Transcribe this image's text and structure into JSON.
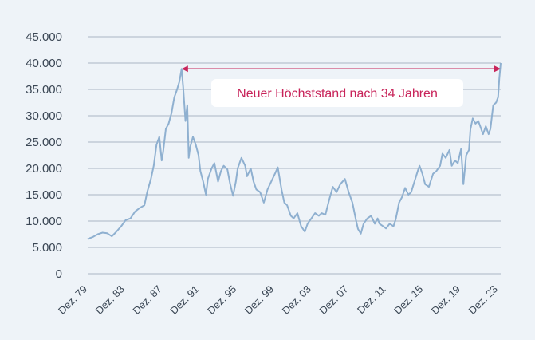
{
  "chart_data": {
    "type": "line",
    "title": "",
    "xlabel": "",
    "ylabel": "",
    "ylim": [
      0,
      45000
    ],
    "grid": true,
    "y_ticks": [
      {
        "value": 0,
        "label": "0"
      },
      {
        "value": 5000,
        "label": "5.000"
      },
      {
        "value": 10000,
        "label": "10.000"
      },
      {
        "value": 15000,
        "label": "15.000"
      },
      {
        "value": 20000,
        "label": "20.000"
      },
      {
        "value": 25000,
        "label": "25.000"
      },
      {
        "value": 30000,
        "label": "30.000"
      },
      {
        "value": 35000,
        "label": "35.000"
      },
      {
        "value": 40000,
        "label": "40.000"
      },
      {
        "value": 45000,
        "label": "45.000"
      }
    ],
    "x_ticks": [
      {
        "value": 1979.92,
        "label": "Dez. 79"
      },
      {
        "value": 1983.92,
        "label": "Dez. 83"
      },
      {
        "value": 1987.92,
        "label": "Dez. 87"
      },
      {
        "value": 1991.92,
        "label": "Dez. 91"
      },
      {
        "value": 1995.92,
        "label": "Dez. 95"
      },
      {
        "value": 1999.92,
        "label": "Dez. 99"
      },
      {
        "value": 2003.92,
        "label": "Dez. 03"
      },
      {
        "value": 2007.92,
        "label": "Dez. 07"
      },
      {
        "value": 2011.92,
        "label": "Dez. 11"
      },
      {
        "value": 2015.92,
        "label": "Dez. 15"
      },
      {
        "value": 2019.92,
        "label": "Dez. 19"
      },
      {
        "value": 2023.92,
        "label": "Dez. 23"
      }
    ],
    "xlim": [
      1979.92,
      2024.2
    ],
    "series": [
      {
        "name": "",
        "color": "#8fb0d0",
        "points": [
          [
            1979.92,
            6600
          ],
          [
            1980.5,
            7000
          ],
          [
            1981.0,
            7500
          ],
          [
            1981.5,
            7800
          ],
          [
            1982.0,
            7700
          ],
          [
            1982.5,
            7100
          ],
          [
            1982.9,
            7800
          ],
          [
            1983.5,
            9000
          ],
          [
            1984.0,
            10200
          ],
          [
            1984.5,
            10500
          ],
          [
            1985.0,
            11800
          ],
          [
            1985.5,
            12500
          ],
          [
            1986.0,
            13000
          ],
          [
            1986.3,
            15500
          ],
          [
            1986.7,
            18000
          ],
          [
            1987.0,
            20500
          ],
          [
            1987.3,
            24500
          ],
          [
            1987.6,
            26000
          ],
          [
            1987.85,
            21500
          ],
          [
            1988.0,
            23000
          ],
          [
            1988.3,
            27500
          ],
          [
            1988.6,
            28500
          ],
          [
            1988.9,
            30500
          ],
          [
            1989.2,
            33500
          ],
          [
            1989.5,
            35000
          ],
          [
            1989.75,
            36500
          ],
          [
            1989.99,
            38900
          ],
          [
            1990.15,
            35500
          ],
          [
            1990.4,
            29000
          ],
          [
            1990.6,
            32000
          ],
          [
            1990.75,
            22000
          ],
          [
            1990.9,
            24000
          ],
          [
            1991.2,
            26000
          ],
          [
            1991.5,
            24500
          ],
          [
            1991.8,
            22500
          ],
          [
            1992.0,
            19500
          ],
          [
            1992.3,
            17500
          ],
          [
            1992.6,
            15000
          ],
          [
            1992.8,
            18000
          ],
          [
            1993.2,
            20000
          ],
          [
            1993.5,
            21000
          ],
          [
            1993.9,
            17500
          ],
          [
            1994.2,
            19500
          ],
          [
            1994.5,
            20500
          ],
          [
            1994.9,
            19800
          ],
          [
            1995.2,
            17000
          ],
          [
            1995.5,
            14800
          ],
          [
            1995.8,
            17500
          ],
          [
            1996.0,
            20000
          ],
          [
            1996.4,
            22000
          ],
          [
            1996.8,
            20500
          ],
          [
            1997.0,
            18500
          ],
          [
            1997.4,
            20000
          ],
          [
            1997.7,
            17500
          ],
          [
            1998.0,
            16000
          ],
          [
            1998.4,
            15500
          ],
          [
            1998.8,
            13500
          ],
          [
            1999.2,
            16000
          ],
          [
            1999.6,
            17500
          ],
          [
            2000.0,
            19000
          ],
          [
            2000.3,
            20200
          ],
          [
            2000.7,
            16000
          ],
          [
            2001.0,
            13500
          ],
          [
            2001.3,
            13000
          ],
          [
            2001.7,
            11000
          ],
          [
            2002.0,
            10500
          ],
          [
            2002.4,
            11500
          ],
          [
            2002.8,
            9000
          ],
          [
            2003.2,
            8000
          ],
          [
            2003.5,
            9500
          ],
          [
            2003.9,
            10500
          ],
          [
            2004.3,
            11500
          ],
          [
            2004.7,
            11000
          ],
          [
            2005.0,
            11500
          ],
          [
            2005.4,
            11200
          ],
          [
            2005.8,
            14000
          ],
          [
            2006.2,
            16500
          ],
          [
            2006.6,
            15500
          ],
          [
            2007.0,
            17000
          ],
          [
            2007.5,
            18000
          ],
          [
            2007.9,
            15500
          ],
          [
            2008.3,
            13500
          ],
          [
            2008.7,
            10000
          ],
          [
            2008.9,
            8500
          ],
          [
            2009.2,
            7600
          ],
          [
            2009.5,
            9500
          ],
          [
            2009.9,
            10500
          ],
          [
            2010.3,
            11000
          ],
          [
            2010.7,
            9500
          ],
          [
            2011.0,
            10500
          ],
          [
            2011.2,
            9500
          ],
          [
            2011.6,
            9000
          ],
          [
            2011.9,
            8600
          ],
          [
            2012.3,
            9500
          ],
          [
            2012.7,
            9000
          ],
          [
            2012.95,
            10400
          ],
          [
            2013.3,
            13500
          ],
          [
            2013.6,
            14500
          ],
          [
            2013.95,
            16300
          ],
          [
            2014.3,
            15000
          ],
          [
            2014.6,
            15500
          ],
          [
            2014.95,
            17500
          ],
          [
            2015.3,
            19500
          ],
          [
            2015.5,
            20500
          ],
          [
            2015.8,
            19000
          ],
          [
            2016.1,
            17000
          ],
          [
            2016.5,
            16500
          ],
          [
            2016.95,
            19000
          ],
          [
            2017.3,
            19500
          ],
          [
            2017.7,
            20500
          ],
          [
            2017.95,
            22800
          ],
          [
            2018.3,
            22000
          ],
          [
            2018.7,
            23500
          ],
          [
            2018.95,
            20500
          ],
          [
            2019.3,
            21500
          ],
          [
            2019.6,
            21000
          ],
          [
            2019.95,
            23700
          ],
          [
            2020.2,
            17000
          ],
          [
            2020.5,
            22500
          ],
          [
            2020.8,
            23500
          ],
          [
            2020.95,
            27400
          ],
          [
            2021.2,
            29500
          ],
          [
            2021.5,
            28500
          ],
          [
            2021.8,
            29000
          ],
          [
            2022.0,
            28000
          ],
          [
            2022.3,
            26500
          ],
          [
            2022.6,
            28000
          ],
          [
            2022.9,
            26500
          ],
          [
            2023.1,
            27500
          ],
          [
            2023.4,
            32000
          ],
          [
            2023.7,
            32500
          ],
          [
            2023.92,
            33500
          ],
          [
            2024.05,
            37000
          ],
          [
            2024.2,
            40000
          ]
        ]
      }
    ],
    "annotation": {
      "text": "Neuer Höchststand nach 34 Jahren",
      "arrow_y": 38900,
      "arrow_x": [
        1989.99,
        2024.2
      ],
      "color": "#c8245a"
    },
    "colors": {
      "background": "#eef3f8",
      "grid": "#a9b6c4",
      "axis_text": "#3a4654",
      "line": "#8fb0d0",
      "accent": "#c8245a",
      "annotation_box": "#ffffff"
    }
  }
}
